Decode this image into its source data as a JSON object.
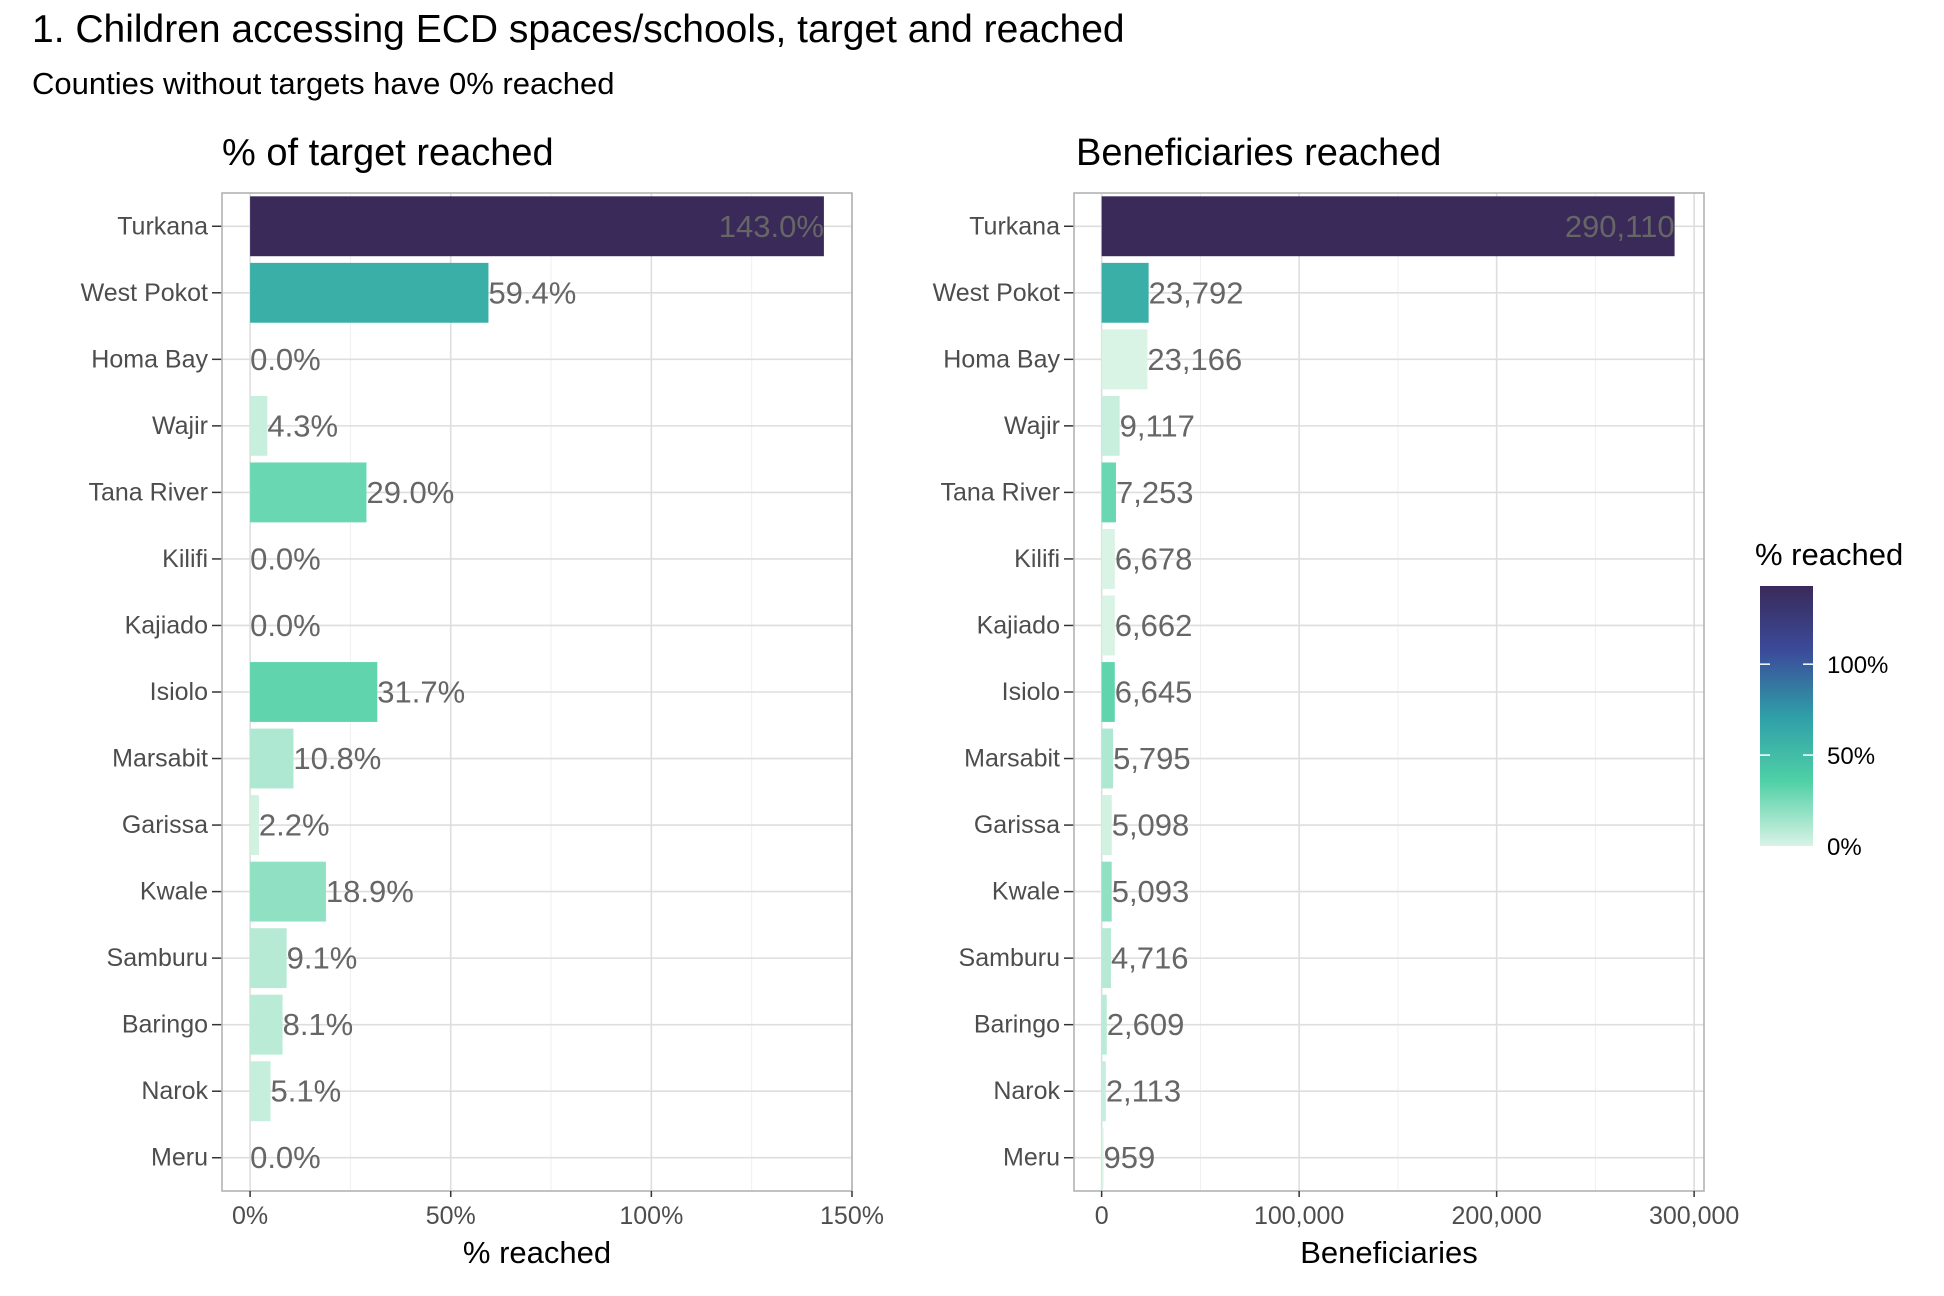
{
  "title": "1. Children accessing ECD spaces/schools, target and reached",
  "subtitle": "Counties without targets have 0% reached",
  "legend": {
    "title": "% reached",
    "labels": [
      "100%",
      "50%",
      "0%"
    ],
    "values": [
      100,
      50,
      0
    ],
    "gradient": [
      "#d9f3e5",
      "#4fd0a6",
      "#2f9ea8",
      "#3b4b9a",
      "#3a2a5a"
    ]
  },
  "chart_data": [
    {
      "type": "bar",
      "orientation": "horizontal",
      "title": "% of target reached",
      "xlabel": "% reached",
      "ylabel": "",
      "xlim": [
        -7,
        150
      ],
      "x_ticks": [
        0,
        50,
        100,
        150
      ],
      "x_tick_labels": [
        "0%",
        "50%",
        "100%",
        "150%"
      ],
      "grid": true,
      "categories": [
        "Turkana",
        "West Pokot",
        "Homa Bay",
        "Wajir",
        "Tana River",
        "Kilifi",
        "Kajiado",
        "Isiolo",
        "Marsabit",
        "Garissa",
        "Kwale",
        "Samburu",
        "Baringo",
        "Narok",
        "Meru"
      ],
      "values": [
        143.0,
        59.4,
        0.0,
        4.3,
        29.0,
        0.0,
        0.0,
        31.7,
        10.8,
        2.2,
        18.9,
        9.1,
        8.1,
        5.1,
        0.0
      ],
      "value_labels": [
        "143.0%",
        "59.4%",
        "0.0%",
        "4.3%",
        "29.0%",
        "0.0%",
        "0.0%",
        "31.7%",
        "10.8%",
        "2.2%",
        "18.9%",
        "9.1%",
        "8.1%",
        "5.1%",
        "0.0%"
      ],
      "fill_values": [
        143.0,
        59.4,
        0.0,
        4.3,
        29.0,
        0.0,
        0.0,
        31.7,
        10.8,
        2.2,
        18.9,
        9.1,
        8.1,
        5.1,
        0.0
      ]
    },
    {
      "type": "bar",
      "orientation": "horizontal",
      "title": "Beneficiaries reached",
      "xlabel": "Beneficiaries",
      "ylabel": "",
      "xlim": [
        -14000,
        305000
      ],
      "x_ticks": [
        0,
        100000,
        200000,
        300000
      ],
      "x_tick_labels": [
        "0",
        "100,000",
        "200,000",
        "300,000"
      ],
      "grid": true,
      "categories": [
        "Turkana",
        "West Pokot",
        "Homa Bay",
        "Wajir",
        "Tana River",
        "Kilifi",
        "Kajiado",
        "Isiolo",
        "Marsabit",
        "Garissa",
        "Kwale",
        "Samburu",
        "Baringo",
        "Narok",
        "Meru"
      ],
      "values": [
        290110,
        23792,
        23166,
        9117,
        7253,
        6678,
        6662,
        6645,
        5795,
        5098,
        5093,
        4716,
        2609,
        2113,
        959
      ],
      "value_labels": [
        "290,110",
        "23,792",
        "23,166",
        "9,117",
        "7,253",
        "6,678",
        "6,662",
        "6,645",
        "5,795",
        "5,098",
        "5,093",
        "4,716",
        "2,609",
        "2,113",
        "959"
      ],
      "fill_values": [
        143.0,
        59.4,
        0.0,
        4.3,
        29.0,
        0.0,
        0.0,
        31.7,
        10.8,
        2.2,
        18.9,
        9.1,
        8.1,
        5.1,
        0.0
      ]
    }
  ]
}
